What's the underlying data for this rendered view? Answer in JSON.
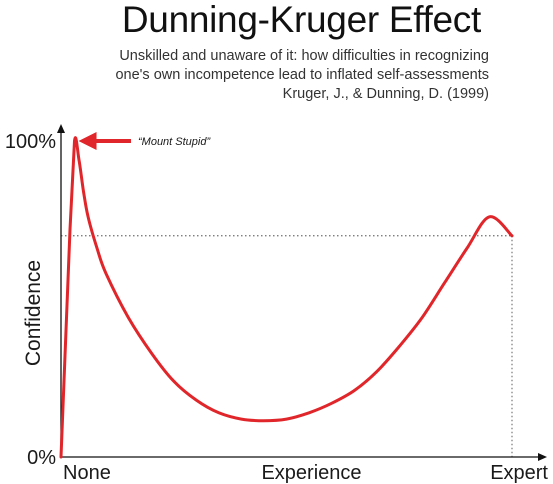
{
  "header": {
    "title": "Dunning-Kruger Effect",
    "subtitle_lines": [
      "Unskilled and unaware of it: how difficulties in recognizing",
      "one's own incompetence lead to inflated self-assessments",
      "Kruger, J., & Dunning, D. (1999)"
    ]
  },
  "chart_data": {
    "type": "line",
    "title": "Dunning-Kruger Effect",
    "ylabel": "Confidence",
    "xlabel": "",
    "x_tick_labels": [
      "None",
      "Experience",
      "Expert"
    ],
    "y_tick_labels": [
      "0%",
      "100%"
    ],
    "xlim": [
      0,
      100
    ],
    "ylim": [
      0,
      100
    ],
    "grid": false,
    "series": [
      {
        "color": "#e0262a",
        "x": [
          0,
          1,
          2,
          3,
          4,
          5,
          6,
          8,
          10,
          15,
          20,
          25,
          30,
          35,
          40,
          45,
          50,
          55,
          60,
          65,
          70,
          75,
          80,
          85,
          90,
          95,
          100
        ],
        "y": [
          0,
          36,
          72,
          100,
          94,
          84,
          76,
          66,
          58,
          44,
          33,
          24,
          18,
          14,
          12,
          11.5,
          12,
          14,
          17,
          21,
          27,
          35,
          44,
          55,
          66,
          76,
          70
        ]
      }
    ],
    "reference_lines": [
      {
        "orientation": "horizontal",
        "y": 70,
        "style": "dotted"
      },
      {
        "orientation": "vertical",
        "x": 100,
        "style": "dotted"
      }
    ],
    "annotations": [
      {
        "text": "“Mount Stupid”",
        "x": 3,
        "y": 100,
        "arrow": true
      }
    ]
  }
}
